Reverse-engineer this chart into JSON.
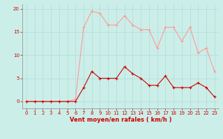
{
  "x": [
    0,
    1,
    2,
    3,
    4,
    5,
    6,
    7,
    8,
    9,
    10,
    11,
    12,
    13,
    14,
    15,
    16,
    17,
    18,
    19,
    20,
    21,
    22,
    23
  ],
  "mean_wind": [
    0,
    0,
    0,
    0,
    0,
    0,
    0,
    3,
    6.5,
    5,
    5,
    5,
    7.5,
    6,
    5,
    3.5,
    3.5,
    5.5,
    3,
    3,
    3,
    4,
    3,
    1
  ],
  "gust_wind": [
    0,
    0,
    0,
    0,
    0,
    0,
    0.5,
    16,
    19.5,
    19,
    16.5,
    16.5,
    18.5,
    16.5,
    15.5,
    15.5,
    11.5,
    16,
    16,
    13,
    16,
    10.5,
    11.5,
    6.5
  ],
  "mean_color": "#cc0000",
  "gust_color": "#ff9999",
  "bg_color": "#cceee8",
  "grid_color": "#aadddd",
  "xlabel": "Vent moyen/en rafales ( km/h )",
  "xlim": [
    -0.5,
    23.5
  ],
  "ylim": [
    -1.5,
    21
  ],
  "yticks": [
    0,
    5,
    10,
    15,
    20
  ],
  "xticks": [
    0,
    1,
    2,
    3,
    4,
    5,
    6,
    7,
    8,
    9,
    10,
    11,
    12,
    13,
    14,
    15,
    16,
    17,
    18,
    19,
    20,
    21,
    22,
    23
  ],
  "axis_fontsize": 5.5,
  "tick_fontsize": 5.0,
  "xlabel_fontsize": 6.0
}
